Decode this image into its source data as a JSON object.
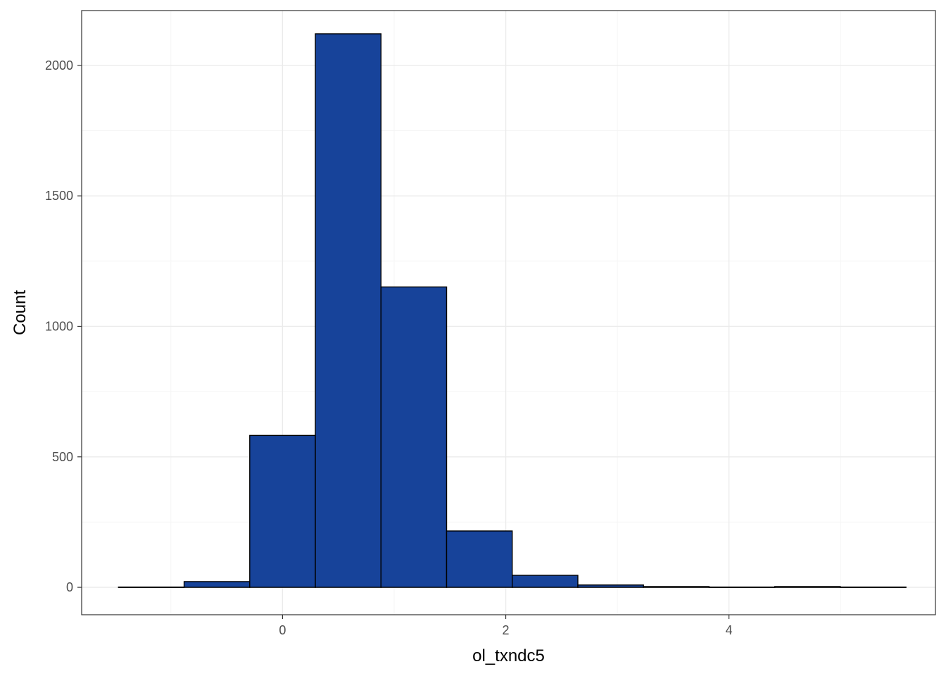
{
  "chart_data": {
    "type": "bar",
    "title": "",
    "xlabel": "ol_txndc5",
    "ylabel": "Count",
    "xlim": [
      -1.8,
      5.85
    ],
    "ylim": [
      -105,
      2210
    ],
    "x_ticks": [
      0,
      2,
      4
    ],
    "x_tick_labels": [
      "0",
      "2",
      "4"
    ],
    "y_ticks": [
      0,
      500,
      1000,
      1500,
      2000
    ],
    "y_tick_labels": [
      "0",
      "500",
      "1000",
      "1500",
      "2000"
    ],
    "grid": true,
    "legend": "none",
    "bin_width": 0.588,
    "bins": [
      {
        "start": -1.47,
        "end": -0.882,
        "count": 1
      },
      {
        "start": -0.882,
        "end": -0.294,
        "count": 22
      },
      {
        "start": -0.294,
        "end": 0.294,
        "count": 582
      },
      {
        "start": 0.294,
        "end": 0.882,
        "count": 2121
      },
      {
        "start": 0.882,
        "end": 1.47,
        "count": 1151
      },
      {
        "start": 1.47,
        "end": 2.058,
        "count": 216
      },
      {
        "start": 2.058,
        "end": 2.646,
        "count": 46
      },
      {
        "start": 2.646,
        "end": 3.234,
        "count": 9
      },
      {
        "start": 3.234,
        "end": 3.822,
        "count": 3
      },
      {
        "start": 3.822,
        "end": 4.41,
        "count": 1
      },
      {
        "start": 4.41,
        "end": 4.998,
        "count": 3
      },
      {
        "start": 4.998,
        "end": 5.586,
        "count": 1
      }
    ],
    "colors": {
      "fill": "#17439A",
      "outline": "#000000",
      "grid_major": "#EBEBEB",
      "grid_minor": "#F5F5F5",
      "panel_border": "#333333"
    }
  }
}
